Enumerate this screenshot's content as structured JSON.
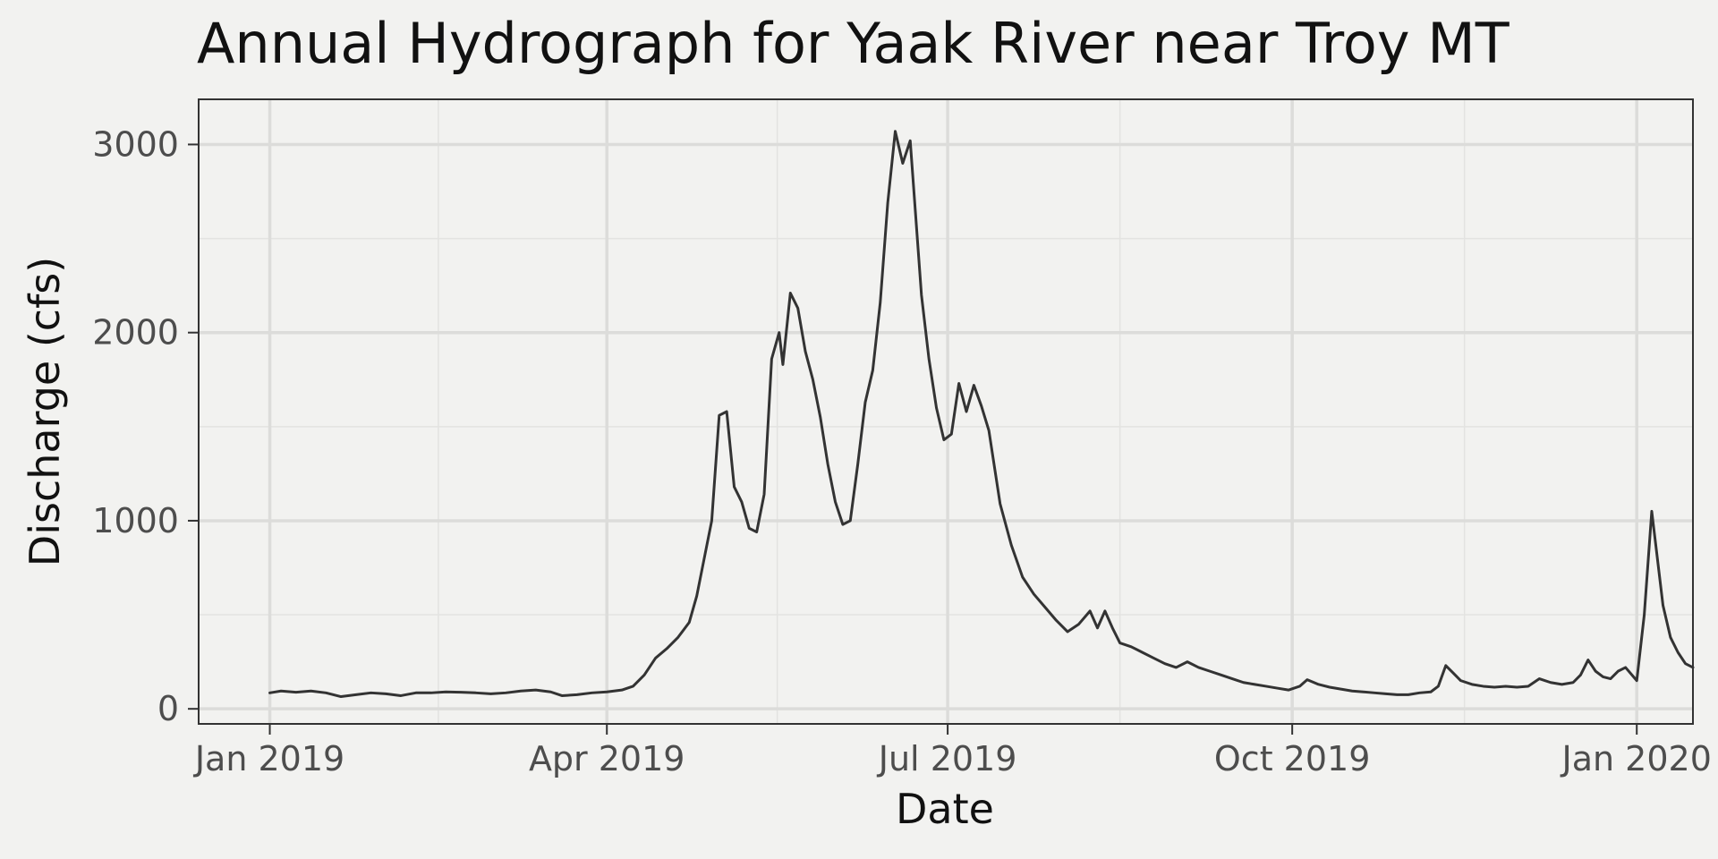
{
  "chart_data": {
    "type": "line",
    "title": "Annual Hydrograph for Yaak River near Troy MT",
    "xlabel": "Date",
    "ylabel": "Discharge (cfs)",
    "x_ticks": [
      "Jan 2019",
      "Apr 2019",
      "Jul 2019",
      "Oct 2019",
      "Jan 2020"
    ],
    "y_ticks": [
      "0",
      "1000",
      "2000",
      "3000"
    ],
    "xlim": [
      "2018-12-13",
      "2020-01-16"
    ],
    "ylim": [
      -80,
      3240
    ],
    "grid": true,
    "series": [
      {
        "color": "#333333",
        "points": [
          [
            "2019-01-01",
            85
          ],
          [
            "2019-01-04",
            95
          ],
          [
            "2019-01-08",
            88
          ],
          [
            "2019-01-12",
            95
          ],
          [
            "2019-01-16",
            85
          ],
          [
            "2019-01-20",
            65
          ],
          [
            "2019-01-24",
            75
          ],
          [
            "2019-01-28",
            85
          ],
          [
            "2019-02-01",
            80
          ],
          [
            "2019-02-05",
            70
          ],
          [
            "2019-02-09",
            85
          ],
          [
            "2019-02-13",
            85
          ],
          [
            "2019-02-17",
            90
          ],
          [
            "2019-02-21",
            88
          ],
          [
            "2019-02-25",
            85
          ],
          [
            "2019-03-01",
            80
          ],
          [
            "2019-03-05",
            85
          ],
          [
            "2019-03-09",
            95
          ],
          [
            "2019-03-13",
            100
          ],
          [
            "2019-03-17",
            90
          ],
          [
            "2019-03-20",
            70
          ],
          [
            "2019-03-24",
            75
          ],
          [
            "2019-03-28",
            85
          ],
          [
            "2019-04-01",
            90
          ],
          [
            "2019-04-05",
            100
          ],
          [
            "2019-04-08",
            120
          ],
          [
            "2019-04-11",
            180
          ],
          [
            "2019-04-14",
            270
          ],
          [
            "2019-04-17",
            320
          ],
          [
            "2019-04-20",
            380
          ],
          [
            "2019-04-23",
            460
          ],
          [
            "2019-04-25",
            600
          ],
          [
            "2019-04-27",
            800
          ],
          [
            "2019-04-29",
            1000
          ],
          [
            "2019-05-01",
            1560
          ],
          [
            "2019-05-03",
            1580
          ],
          [
            "2019-05-05",
            1180
          ],
          [
            "2019-05-07",
            1100
          ],
          [
            "2019-05-09",
            960
          ],
          [
            "2019-05-11",
            940
          ],
          [
            "2019-05-13",
            1140
          ],
          [
            "2019-05-15",
            1860
          ],
          [
            "2019-05-17",
            2000
          ],
          [
            "2019-05-18",
            1830
          ],
          [
            "2019-05-20",
            2210
          ],
          [
            "2019-05-22",
            2130
          ],
          [
            "2019-05-24",
            1900
          ],
          [
            "2019-05-26",
            1750
          ],
          [
            "2019-05-28",
            1550
          ],
          [
            "2019-05-30",
            1300
          ],
          [
            "2019-06-01",
            1100
          ],
          [
            "2019-06-03",
            980
          ],
          [
            "2019-06-05",
            1000
          ],
          [
            "2019-06-07",
            1300
          ],
          [
            "2019-06-09",
            1630
          ],
          [
            "2019-06-11",
            1800
          ],
          [
            "2019-06-13",
            2160
          ],
          [
            "2019-06-15",
            2690
          ],
          [
            "2019-06-17",
            3070
          ],
          [
            "2019-06-19",
            2900
          ],
          [
            "2019-06-21",
            3020
          ],
          [
            "2019-06-24",
            2200
          ],
          [
            "2019-06-26",
            1860
          ],
          [
            "2019-06-28",
            1600
          ],
          [
            "2019-06-30",
            1430
          ],
          [
            "2019-07-02",
            1460
          ],
          [
            "2019-07-04",
            1730
          ],
          [
            "2019-07-06",
            1580
          ],
          [
            "2019-07-08",
            1720
          ],
          [
            "2019-07-10",
            1610
          ],
          [
            "2019-07-12",
            1480
          ],
          [
            "2019-07-15",
            1090
          ],
          [
            "2019-07-18",
            870
          ],
          [
            "2019-07-21",
            700
          ],
          [
            "2019-07-24",
            610
          ],
          [
            "2019-07-27",
            540
          ],
          [
            "2019-07-30",
            470
          ],
          [
            "2019-08-02",
            410
          ],
          [
            "2019-08-05",
            450
          ],
          [
            "2019-08-08",
            520
          ],
          [
            "2019-08-10",
            430
          ],
          [
            "2019-08-12",
            520
          ],
          [
            "2019-08-14",
            430
          ],
          [
            "2019-08-16",
            350
          ],
          [
            "2019-08-19",
            330
          ],
          [
            "2019-08-22",
            300
          ],
          [
            "2019-08-25",
            270
          ],
          [
            "2019-08-28",
            240
          ],
          [
            "2019-08-31",
            220
          ],
          [
            "2019-09-03",
            250
          ],
          [
            "2019-09-06",
            220
          ],
          [
            "2019-09-09",
            200
          ],
          [
            "2019-09-12",
            180
          ],
          [
            "2019-09-15",
            160
          ],
          [
            "2019-09-18",
            140
          ],
          [
            "2019-09-21",
            130
          ],
          [
            "2019-09-24",
            120
          ],
          [
            "2019-09-27",
            110
          ],
          [
            "2019-09-30",
            100
          ],
          [
            "2019-10-03",
            120
          ],
          [
            "2019-10-05",
            155
          ],
          [
            "2019-10-08",
            130
          ],
          [
            "2019-10-11",
            115
          ],
          [
            "2019-10-14",
            105
          ],
          [
            "2019-10-17",
            95
          ],
          [
            "2019-10-20",
            90
          ],
          [
            "2019-10-23",
            85
          ],
          [
            "2019-10-26",
            80
          ],
          [
            "2019-10-29",
            75
          ],
          [
            "2019-11-01",
            75
          ],
          [
            "2019-11-04",
            85
          ],
          [
            "2019-11-07",
            90
          ],
          [
            "2019-11-09",
            120
          ],
          [
            "2019-11-11",
            230
          ],
          [
            "2019-11-13",
            190
          ],
          [
            "2019-11-15",
            150
          ],
          [
            "2019-11-18",
            130
          ],
          [
            "2019-11-21",
            120
          ],
          [
            "2019-11-24",
            115
          ],
          [
            "2019-11-27",
            120
          ],
          [
            "2019-11-30",
            115
          ],
          [
            "2019-12-03",
            120
          ],
          [
            "2019-12-06",
            160
          ],
          [
            "2019-12-09",
            140
          ],
          [
            "2019-12-12",
            130
          ],
          [
            "2019-12-15",
            140
          ],
          [
            "2019-12-17",
            180
          ],
          [
            "2019-12-19",
            260
          ],
          [
            "2019-12-21",
            200
          ],
          [
            "2019-12-23",
            170
          ],
          [
            "2019-12-25",
            160
          ],
          [
            "2019-12-27",
            200
          ],
          [
            "2019-12-29",
            220
          ],
          [
            "2020-01-01",
            150
          ],
          [
            "2020-01-03",
            500
          ],
          [
            "2020-01-05",
            1050
          ],
          [
            "2020-01-08",
            550
          ],
          [
            "2020-01-10",
            380
          ],
          [
            "2020-01-12",
            300
          ],
          [
            "2020-01-14",
            240
          ],
          [
            "2020-01-16",
            220
          ]
        ]
      }
    ]
  }
}
